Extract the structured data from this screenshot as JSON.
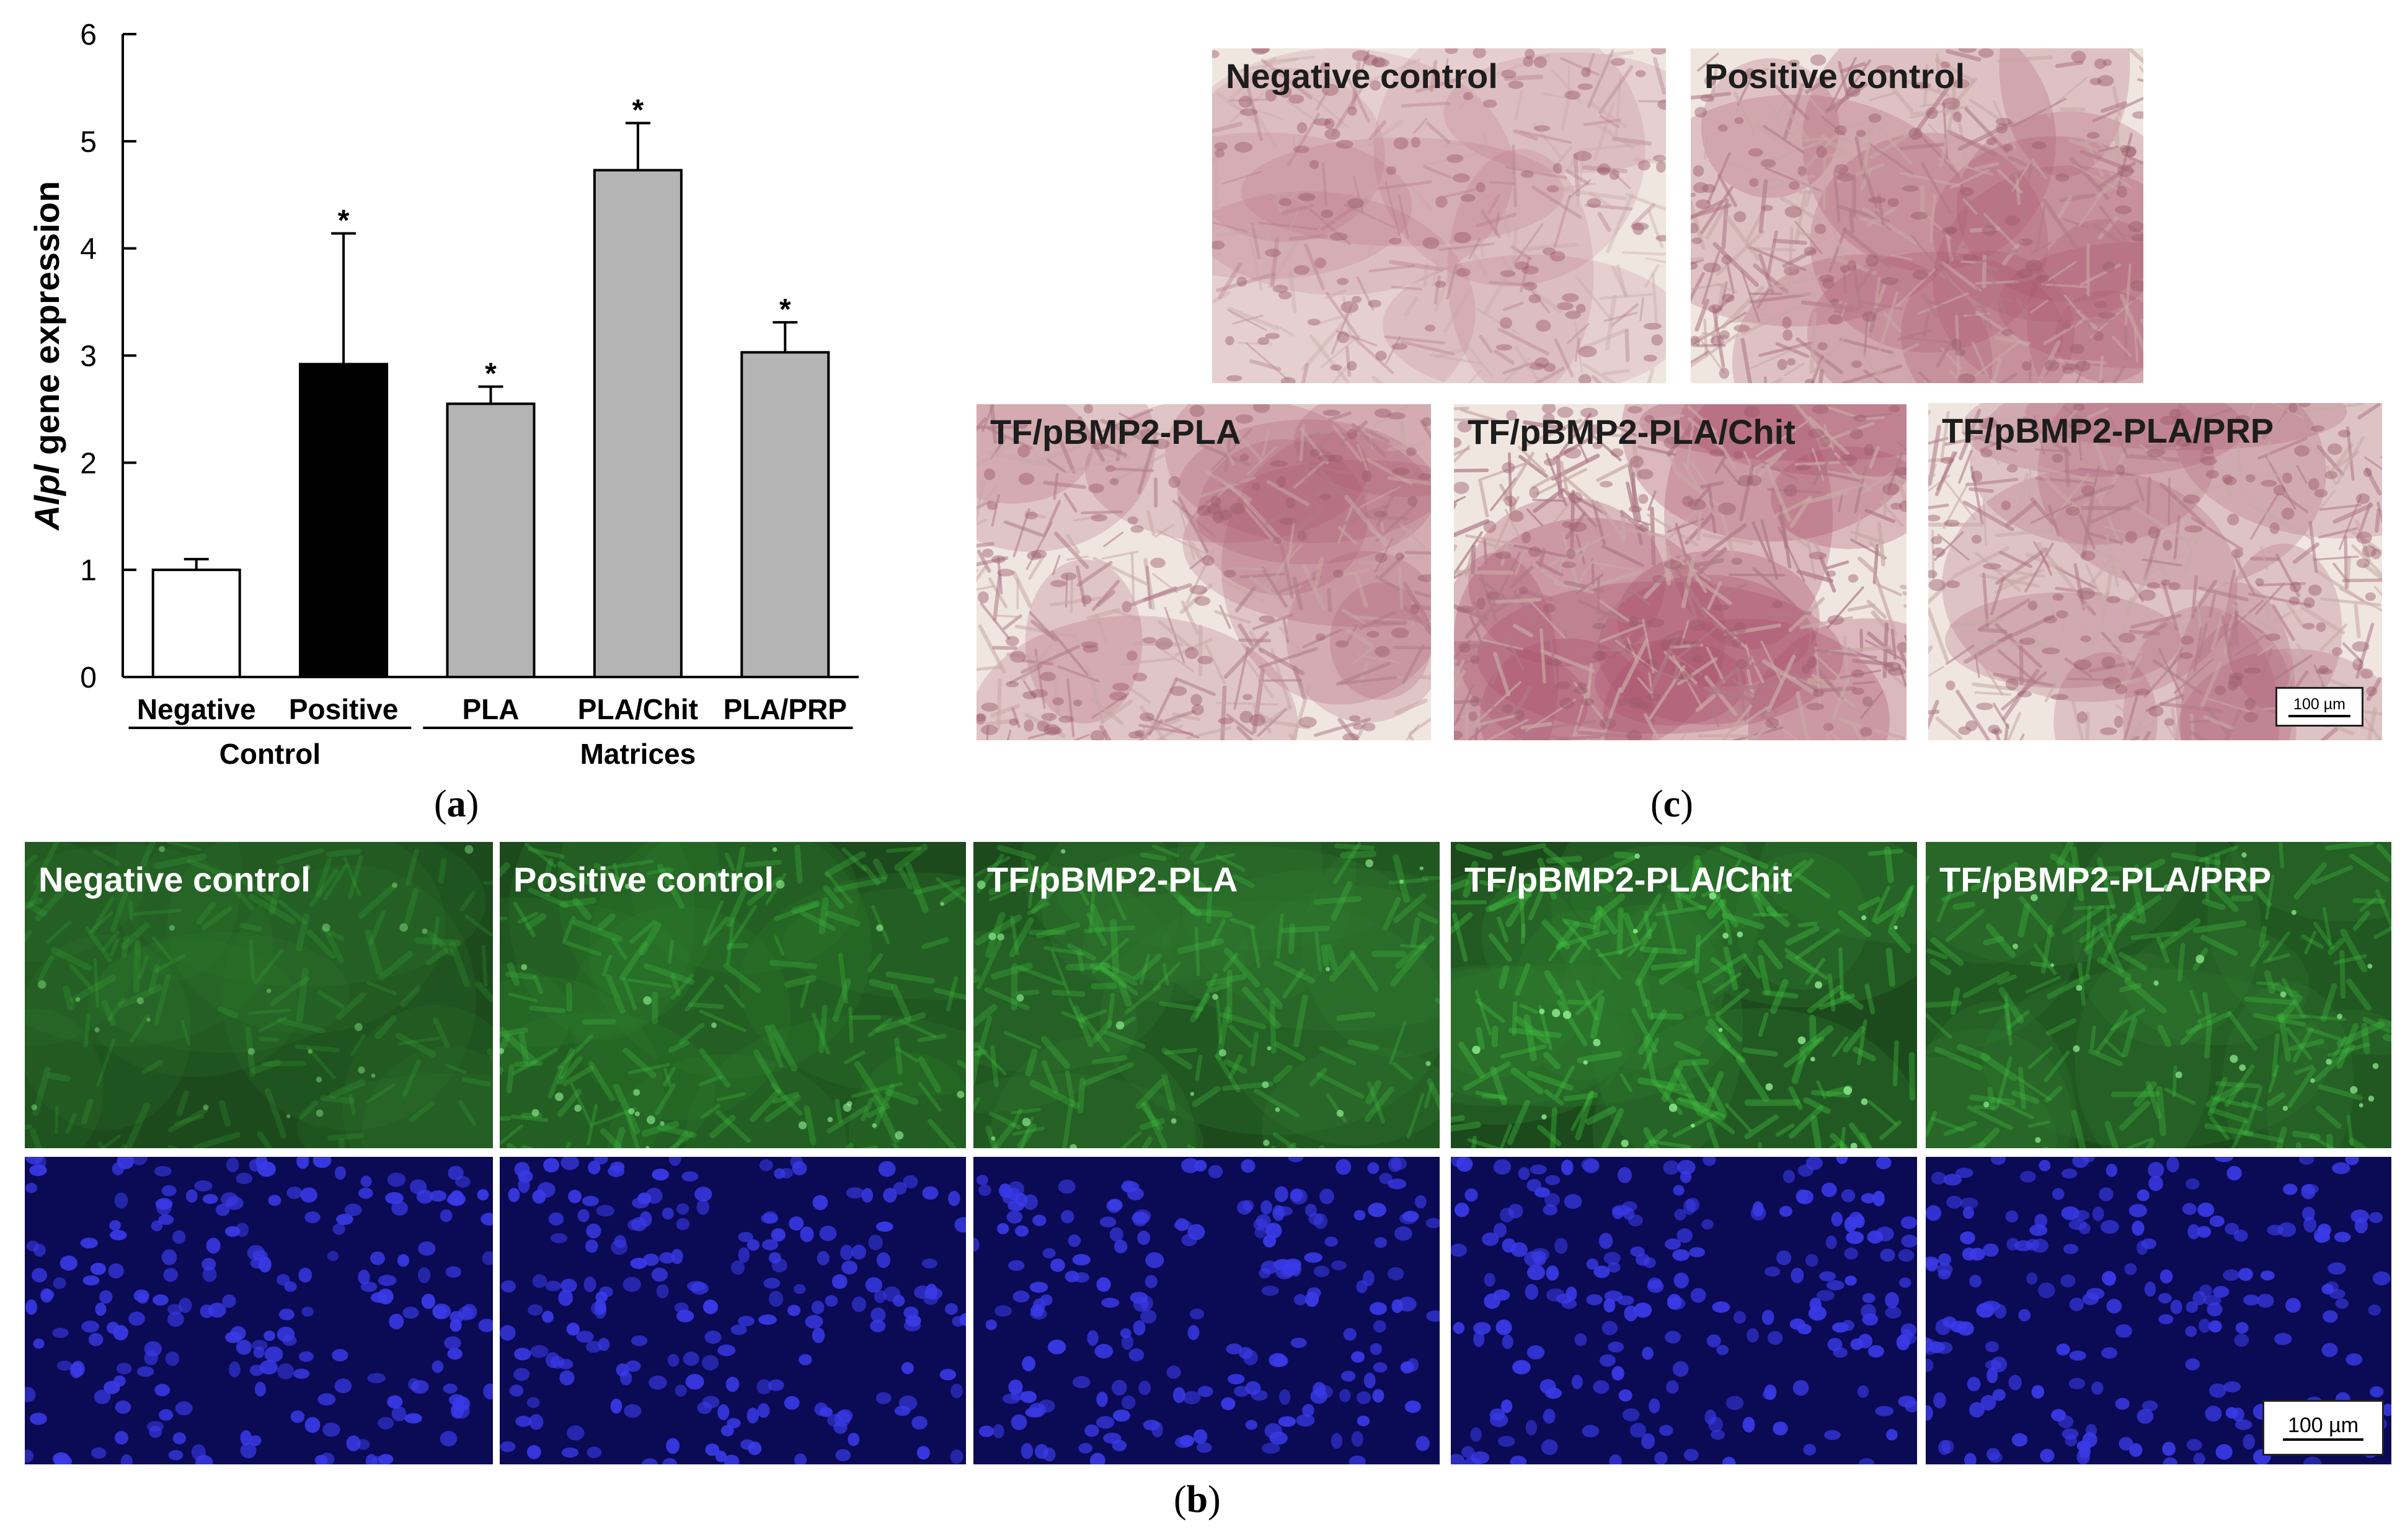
{
  "panels": {
    "a": "a",
    "b": "b",
    "c": "c"
  },
  "chart_data": {
    "type": "bar",
    "ylabel_italic": "Alpl",
    "ylabel_rest": " gene expression",
    "ylim": [
      0,
      6
    ],
    "yticks": [
      "0",
      "1",
      "2",
      "3",
      "4",
      "5",
      "6"
    ],
    "categories": [
      "Negative",
      "Positive",
      "PLA",
      "PLA/Chit",
      "PLA/PRP"
    ],
    "values": [
      1.0,
      2.92,
      2.55,
      4.73,
      3.03
    ],
    "errors": [
      0.1,
      1.22,
      0.16,
      0.44,
      0.28
    ],
    "significant": [
      false,
      true,
      true,
      true,
      true
    ],
    "significance_mark": "*",
    "bar_colors": [
      "#ffffff",
      "#000000",
      "#b4b4b4",
      "#b4b4b4",
      "#b4b4b4"
    ],
    "groups": [
      {
        "label": "Control",
        "categories": [
          0,
          1
        ]
      },
      {
        "label": "Matrices",
        "categories": [
          2,
          3,
          4
        ]
      }
    ],
    "grid": false,
    "legend": "none"
  },
  "histology": {
    "labels": [
      "Negative control",
      "Positive control",
      "TF/pBMP2-PLA",
      "TF/pBMP2-PLA/Chit",
      "TF/pBMP2-PLA/PRP"
    ],
    "scale_bar": "100 µm"
  },
  "fluorescence": {
    "labels": [
      "Negative control",
      "Positive control",
      "TF/pBMP2-PLA",
      "TF/pBMP2-PLA/Chit",
      "TF/pBMP2-PLA/PRP"
    ],
    "scale_bar": "100 µm"
  },
  "colors": {
    "histology_bg": "#efe6e0",
    "histology_stain": "#a8506a",
    "green_channel": "#1c4a1c",
    "green_cells": "#3fbf3f",
    "blue_channel": "#0a0a55",
    "blue_nuclei": "#3a3ae8"
  }
}
